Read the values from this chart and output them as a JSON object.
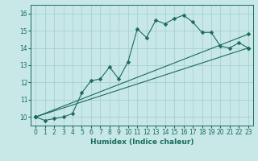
{
  "xlabel": "Humidex (Indice chaleur)",
  "ylabel": "",
  "background_color": "#c8e8e8",
  "grid_color": "#a8d0d0",
  "line_color": "#1a6b5a",
  "xlim": [
    -0.5,
    23.5
  ],
  "ylim": [
    9.5,
    16.5
  ],
  "yticks": [
    10,
    11,
    12,
    13,
    14,
    15,
    16
  ],
  "xticks": [
    0,
    1,
    2,
    3,
    4,
    5,
    6,
    7,
    8,
    9,
    10,
    11,
    12,
    13,
    14,
    15,
    16,
    17,
    18,
    19,
    20,
    21,
    22,
    23
  ],
  "line1_x": [
    0,
    1,
    2,
    3,
    4,
    5,
    6,
    7,
    8,
    9,
    10,
    11,
    12,
    13,
    14,
    15,
    16,
    17,
    18,
    19,
    20,
    21,
    22,
    23
  ],
  "line1_y": [
    10.0,
    9.8,
    9.9,
    10.0,
    10.2,
    11.4,
    12.1,
    12.2,
    12.9,
    12.2,
    13.2,
    15.1,
    14.6,
    15.6,
    15.4,
    15.7,
    15.9,
    15.5,
    14.9,
    14.9,
    14.1,
    14.0,
    14.3,
    14.0
  ],
  "line2_x": [
    0,
    23
  ],
  "line2_y": [
    10.0,
    14.8
  ],
  "line3_x": [
    0,
    23
  ],
  "line3_y": [
    10.0,
    14.0
  ]
}
